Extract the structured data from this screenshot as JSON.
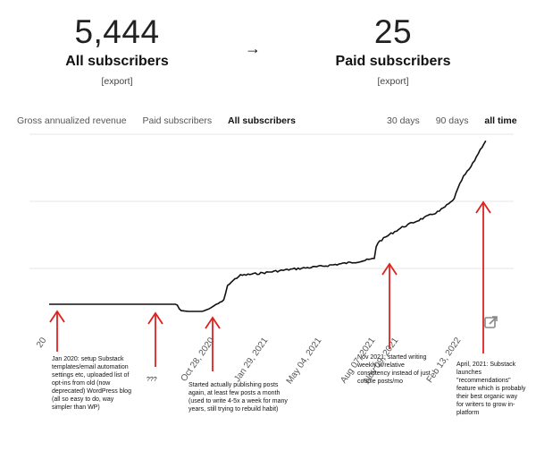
{
  "stats": {
    "all": {
      "value": "5,444",
      "label": "All subscribers",
      "export": "[export]"
    },
    "arrow": "→",
    "paid": {
      "value": "25",
      "label": "Paid subscribers",
      "export": "[export]"
    }
  },
  "tabs_left": [
    {
      "label": "Gross annualized revenue",
      "active": false
    },
    {
      "label": "Paid subscribers",
      "active": false
    },
    {
      "label": "All subscribers",
      "active": true
    }
  ],
  "tabs_right": [
    {
      "label": "30 days",
      "active": false
    },
    {
      "label": "90 days",
      "active": false
    },
    {
      "label": "all time",
      "active": true
    }
  ],
  "chart_data": {
    "type": "line",
    "x_tick_labels": [
      "20",
      "Oct 28, 2020",
      "Jan 29, 2021",
      "May 04, 2021",
      "Aug 07, 2021",
      "Nov 09, 2021",
      "Feb 13, 2022"
    ],
    "series": [
      {
        "values": [
          [
            0,
            340
          ],
          [
            0.12,
            340
          ],
          [
            0.23,
            340
          ],
          [
            0.275,
            340
          ],
          [
            0.282,
            347
          ],
          [
            0.3,
            348
          ],
          [
            0.33,
            348
          ],
          [
            0.345,
            345
          ],
          [
            0.36,
            340
          ],
          [
            0.375,
            337
          ],
          [
            0.385,
            318
          ],
          [
            0.41,
            308
          ],
          [
            0.46,
            305
          ],
          [
            0.52,
            301
          ],
          [
            0.58,
            298
          ],
          [
            0.64,
            294
          ],
          [
            0.67,
            292
          ],
          [
            0.7,
            289
          ],
          [
            0.705,
            272
          ],
          [
            0.73,
            263
          ],
          [
            0.76,
            254
          ],
          [
            0.8,
            245
          ],
          [
            0.84,
            236
          ],
          [
            0.87,
            224
          ],
          [
            0.88,
            211
          ],
          [
            0.89,
            199
          ],
          [
            0.91,
            185
          ],
          [
            0.925,
            170
          ],
          [
            0.94,
            157
          ]
        ]
      }
    ],
    "grid": "horizontal"
  },
  "annotations": [
    {
      "id": "jan2020",
      "text": "Jan 2020: setup Substack templates/email automation settings etc, uploaded list of opt-ins from old (now deprecated) WordPress blog (all so easy to do, way simpler than WP)"
    },
    {
      "id": "qqq",
      "text": "???"
    },
    {
      "id": "started",
      "text": "Started actually publishing posts again, at least few posts a month  (used to write 4-5x a week for many years, still trying to rebuild habit)"
    },
    {
      "id": "nov2021",
      "text": "Nov 2021: started writing weekly w/relative consistency instead of just couple posts/mo"
    },
    {
      "id": "april2021",
      "text": "April, 2021: Substack launches \"recommendations\" feature which is probably their best organic way for writers to grow in-platform"
    }
  ],
  "colors": {
    "line": "#111111",
    "grid": "#e6e6e6",
    "arrow": "#e0201f",
    "tick_label": "#555555"
  },
  "icons": {
    "popout": "external-link-icon"
  }
}
